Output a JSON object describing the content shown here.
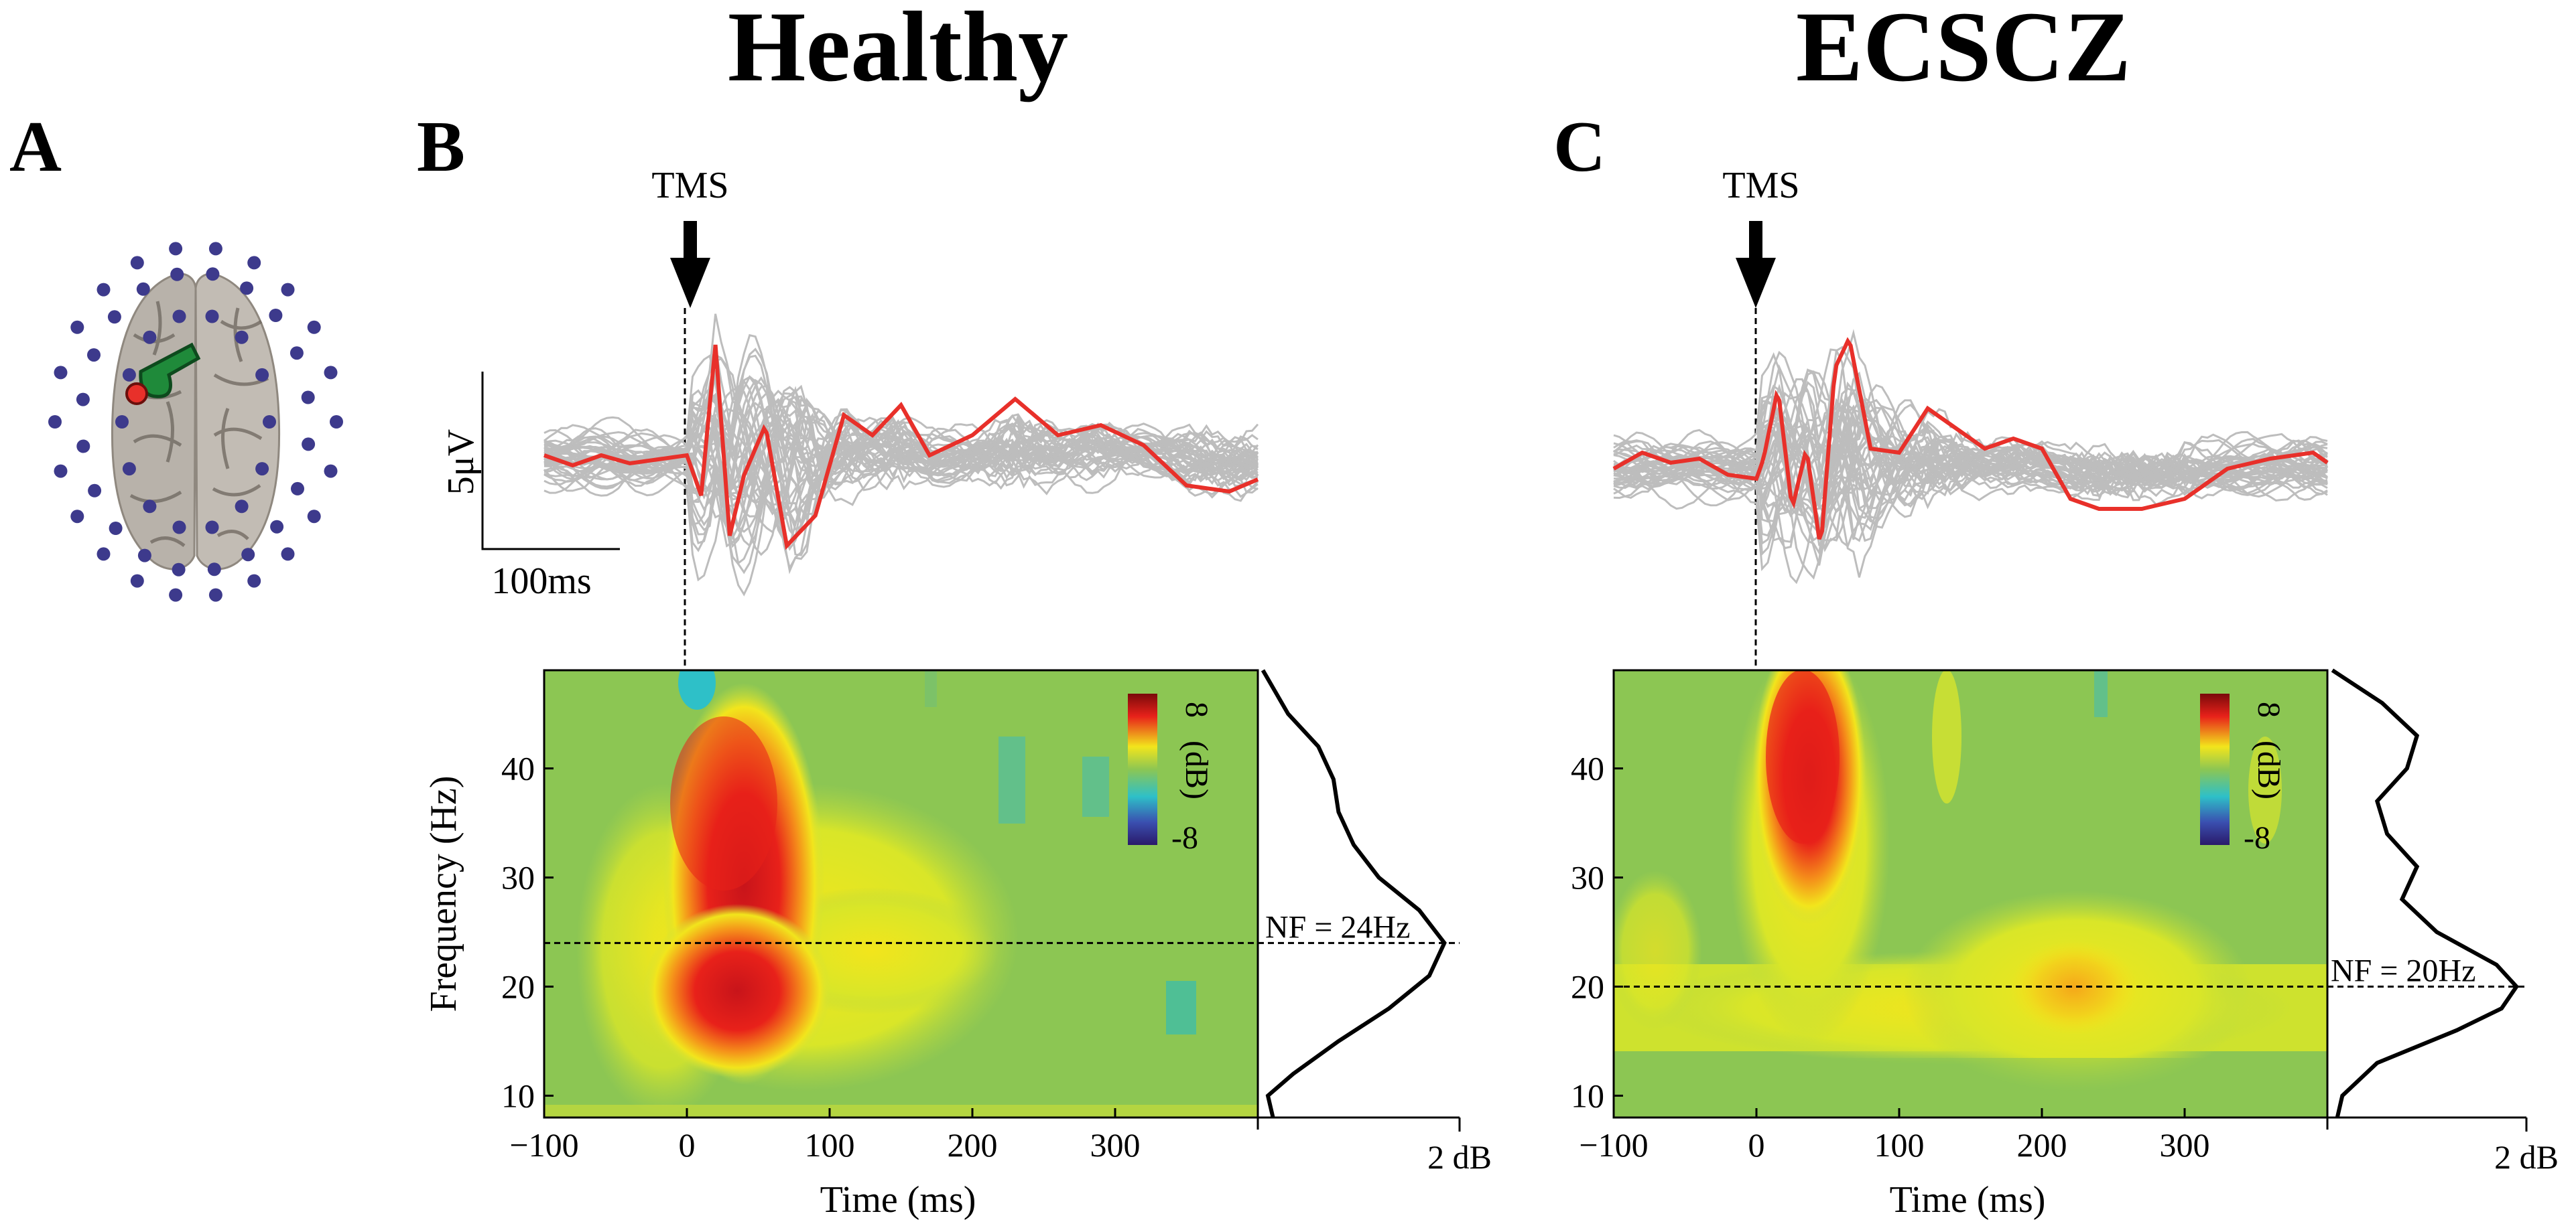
{
  "panel_labels": {
    "A": "A",
    "B": "B",
    "C": "C"
  },
  "titles": {
    "healthy": "Healthy",
    "ecscz": "ECSCZ"
  },
  "tms_label": "TMS",
  "scale_bar": {
    "voltage": "5μV",
    "time": "100ms"
  },
  "colorbar": {
    "top": "8",
    "bottom": "-8",
    "unit": "(dB)"
  },
  "colors": {
    "red_trace": "#e8302a",
    "gray_traces": "#bdbdbd",
    "electrode": "#3d3a8c",
    "tms_coil": "#1f8a3a",
    "stim_site": "#e8302a",
    "brain": "#b8b2aa",
    "map_background": "#8cc653"
  },
  "chart_data": [
    {
      "type": "line",
      "panel": "B-top",
      "title": "Healthy",
      "description_series": "TMS-evoked EEG butterfly plot",
      "x_range_ms": [
        -100,
        400
      ],
      "annotation": "TMS",
      "series": [
        {
          "name": "highlighted channel",
          "color": "#e8302a",
          "x": [
            -100,
            -80,
            -60,
            -40,
            -20,
            0,
            10,
            20,
            30,
            40,
            55,
            70,
            90,
            110,
            130,
            150,
            170,
            200,
            230,
            260,
            290,
            320,
            350,
            380,
            400
          ],
          "y": [
            0,
            -0.5,
            0,
            -0.4,
            -0.2,
            0,
            -2,
            5.5,
            -4,
            -1,
            1.5,
            -4.5,
            -3,
            2,
            1,
            2.5,
            0,
            1,
            2.8,
            1,
            1.5,
            0.5,
            -1.5,
            -1.8,
            -1.2
          ]
        }
      ]
    },
    {
      "type": "heatmap",
      "panel": "B-bottom",
      "xlabel": "Time (ms)",
      "ylabel": "Frequency (Hz)",
      "x_ticks": [
        "-100",
        "0",
        "100",
        "200",
        "300"
      ],
      "y_ticks": [
        "10",
        "20",
        "30",
        "40"
      ],
      "xlim": [
        -100,
        400
      ],
      "ylim": [
        8,
        49
      ],
      "colorbar_range_dB": [
        -8,
        8
      ],
      "side_profile": {
        "x_label": "2 dB",
        "annotation": "NF = 24Hz",
        "natural_frequency_hz": 24,
        "freq": [
          8,
          10,
          12,
          15,
          18,
          21,
          24,
          27,
          30,
          33,
          36,
          39,
          42,
          45,
          49
        ],
        "power_db": [
          0.15,
          0.1,
          0.35,
          0.8,
          1.3,
          1.7,
          1.85,
          1.6,
          1.2,
          0.95,
          0.8,
          0.75,
          0.6,
          0.3,
          0.05
        ]
      }
    },
    {
      "type": "line",
      "panel": "C-top",
      "title": "ECSCZ",
      "x_range_ms": [
        -100,
        400
      ],
      "annotation": "TMS",
      "series": [
        {
          "name": "highlighted channel",
          "color": "#e8302a",
          "x": [
            -100,
            -80,
            -60,
            -40,
            -20,
            0,
            5,
            15,
            25,
            35,
            45,
            55,
            65,
            80,
            100,
            120,
            140,
            160,
            180,
            200,
            220,
            240,
            270,
            300,
            330,
            360,
            390,
            400
          ],
          "y": [
            0,
            0.8,
            0.3,
            0.5,
            -0.3,
            -0.5,
            0.5,
            4,
            -2,
            1,
            -4,
            5,
            6.5,
            1,
            0.8,
            3,
            2,
            1,
            1.5,
            1,
            -1.5,
            -2,
            -2,
            -1.5,
            0,
            0.5,
            0.8,
            0.3
          ]
        }
      ]
    },
    {
      "type": "heatmap",
      "panel": "C-bottom",
      "xlabel": "Time (ms)",
      "x_ticks": [
        "-100",
        "0",
        "100",
        "200",
        "300"
      ],
      "y_ticks": [
        "10",
        "20",
        "30",
        "40"
      ],
      "xlim": [
        -100,
        400
      ],
      "ylim": [
        8,
        49
      ],
      "colorbar_range_dB": [
        -8,
        8
      ],
      "side_profile": {
        "x_label": "2 dB",
        "annotation": "NF = 20Hz",
        "natural_frequency_hz": 20,
        "freq": [
          8,
          10,
          13,
          16,
          18,
          20,
          22,
          25,
          28,
          31,
          34,
          37,
          40,
          43,
          46,
          49
        ],
        "power_db": [
          0.1,
          0.15,
          0.5,
          1.3,
          1.75,
          1.9,
          1.7,
          1.1,
          0.75,
          0.9,
          0.6,
          0.5,
          0.8,
          0.9,
          0.55,
          0.05
        ]
      }
    }
  ]
}
